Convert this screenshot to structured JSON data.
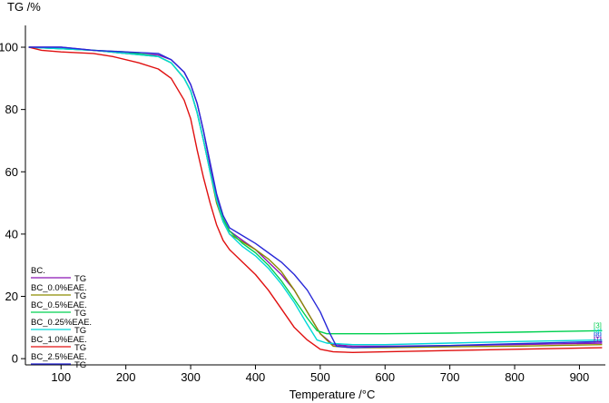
{
  "chart_data": {
    "type": "line",
    "ylabel": "TG /%",
    "xlabel": "Temperature /°C",
    "xlim": [
      45,
      940
    ],
    "ylim": [
      -2,
      107
    ],
    "x_ticks": [
      100,
      200,
      300,
      400,
      500,
      600,
      700,
      800,
      900
    ],
    "y_ticks": [
      0,
      20,
      40,
      60,
      80,
      100
    ],
    "legend_position": "bottom-left",
    "series": [
      {
        "name": "BC.",
        "color": "#8b14b4",
        "unit": "TG",
        "points": [
          [
            50,
            100
          ],
          [
            100,
            100
          ],
          [
            150,
            99
          ],
          [
            200,
            98
          ],
          [
            250,
            97.5
          ],
          [
            270,
            96
          ],
          [
            290,
            92
          ],
          [
            300,
            88
          ],
          [
            310,
            82
          ],
          [
            320,
            73
          ],
          [
            330,
            62
          ],
          [
            340,
            52
          ],
          [
            350,
            45
          ],
          [
            360,
            41
          ],
          [
            380,
            38
          ],
          [
            400,
            35
          ],
          [
            420,
            31
          ],
          [
            440,
            27
          ],
          [
            460,
            22
          ],
          [
            480,
            15
          ],
          [
            500,
            8
          ],
          [
            520,
            4.5
          ],
          [
            550,
            4
          ],
          [
            600,
            4
          ],
          [
            700,
            4.2
          ],
          [
            800,
            4.5
          ],
          [
            935,
            5
          ]
        ]
      },
      {
        "name": "BC_0.0%EAE.",
        "color": "#8c8c00",
        "unit": "TG",
        "points": [
          [
            50,
            100
          ],
          [
            100,
            99.5
          ],
          [
            150,
            99
          ],
          [
            200,
            98
          ],
          [
            250,
            97
          ],
          [
            270,
            95
          ],
          [
            290,
            90
          ],
          [
            300,
            86
          ],
          [
            310,
            79
          ],
          [
            320,
            70
          ],
          [
            330,
            60
          ],
          [
            340,
            50
          ],
          [
            350,
            44
          ],
          [
            360,
            40
          ],
          [
            380,
            37.5
          ],
          [
            400,
            35
          ],
          [
            420,
            32
          ],
          [
            440,
            28
          ],
          [
            460,
            22
          ],
          [
            480,
            15
          ],
          [
            500,
            8
          ],
          [
            520,
            4
          ],
          [
            550,
            3.5
          ],
          [
            600,
            3.5
          ],
          [
            700,
            3.8
          ],
          [
            800,
            4
          ],
          [
            935,
            4.5
          ]
        ]
      },
      {
        "name": "BC_0.5%EAE.",
        "color": "#00d050",
        "unit": "TG",
        "points": [
          [
            50,
            100
          ],
          [
            100,
            99.5
          ],
          [
            150,
            99
          ],
          [
            200,
            98.5
          ],
          [
            250,
            97
          ],
          [
            270,
            95
          ],
          [
            290,
            90
          ],
          [
            300,
            86
          ],
          [
            310,
            79
          ],
          [
            320,
            70
          ],
          [
            330,
            60
          ],
          [
            340,
            51
          ],
          [
            350,
            45
          ],
          [
            360,
            41
          ],
          [
            380,
            37
          ],
          [
            400,
            34
          ],
          [
            420,
            30
          ],
          [
            440,
            25
          ],
          [
            460,
            19
          ],
          [
            480,
            13
          ],
          [
            495,
            9
          ],
          [
            510,
            8
          ],
          [
            550,
            8
          ],
          [
            600,
            8
          ],
          [
            700,
            8.2
          ],
          [
            800,
            8.5
          ],
          [
            935,
            9
          ]
        ]
      },
      {
        "name": "BC_0.25%EAE.",
        "color": "#00d8d8",
        "unit": "TG",
        "points": [
          [
            50,
            100
          ],
          [
            100,
            99.5
          ],
          [
            150,
            99
          ],
          [
            200,
            98
          ],
          [
            250,
            97
          ],
          [
            270,
            95
          ],
          [
            290,
            90
          ],
          [
            300,
            86
          ],
          [
            310,
            79
          ],
          [
            320,
            70
          ],
          [
            330,
            60
          ],
          [
            340,
            51
          ],
          [
            350,
            44
          ],
          [
            360,
            40
          ],
          [
            380,
            36
          ],
          [
            400,
            33
          ],
          [
            420,
            29
          ],
          [
            440,
            24
          ],
          [
            460,
            18
          ],
          [
            480,
            11
          ],
          [
            495,
            6
          ],
          [
            510,
            5
          ],
          [
            550,
            4.5
          ],
          [
            600,
            4.5
          ],
          [
            700,
            5
          ],
          [
            800,
            5.5
          ],
          [
            935,
            6
          ]
        ]
      },
      {
        "name": "BC_1.0%EAE.",
        "color": "#e01010",
        "unit": "TG",
        "points": [
          [
            50,
            100
          ],
          [
            70,
            99
          ],
          [
            100,
            98.5
          ],
          [
            150,
            98
          ],
          [
            180,
            97
          ],
          [
            220,
            95
          ],
          [
            250,
            93
          ],
          [
            270,
            90
          ],
          [
            290,
            83
          ],
          [
            300,
            77
          ],
          [
            310,
            67
          ],
          [
            320,
            58
          ],
          [
            330,
            50
          ],
          [
            340,
            43
          ],
          [
            350,
            38
          ],
          [
            360,
            35
          ],
          [
            380,
            31
          ],
          [
            400,
            27
          ],
          [
            420,
            22
          ],
          [
            440,
            16
          ],
          [
            460,
            10
          ],
          [
            480,
            6
          ],
          [
            500,
            3
          ],
          [
            520,
            2.2
          ],
          [
            550,
            2
          ],
          [
            600,
            2.2
          ],
          [
            700,
            2.6
          ],
          [
            800,
            3
          ],
          [
            935,
            3.5
          ]
        ]
      },
      {
        "name": "BC_2.5%EAE.",
        "color": "#2828d8",
        "unit": "TG",
        "points": [
          [
            50,
            100
          ],
          [
            100,
            100
          ],
          [
            150,
            99
          ],
          [
            200,
            98.5
          ],
          [
            250,
            98
          ],
          [
            270,
            96
          ],
          [
            290,
            92
          ],
          [
            300,
            88
          ],
          [
            310,
            82
          ],
          [
            320,
            73
          ],
          [
            330,
            63
          ],
          [
            340,
            53
          ],
          [
            350,
            46
          ],
          [
            360,
            42
          ],
          [
            380,
            39.5
          ],
          [
            400,
            37
          ],
          [
            420,
            34
          ],
          [
            440,
            31
          ],
          [
            460,
            27
          ],
          [
            480,
            22
          ],
          [
            500,
            15
          ],
          [
            515,
            8
          ],
          [
            525,
            4
          ],
          [
            550,
            3.5
          ],
          [
            600,
            3.8
          ],
          [
            700,
            4.2
          ],
          [
            800,
            4.8
          ],
          [
            935,
            5.5
          ]
        ]
      }
    ],
    "end_markers": [
      {
        "label": "[3]",
        "color": "#00d050",
        "y": 10.7
      },
      {
        "label": "[4]",
        "color": "#00d8d8",
        "y": 8.7
      },
      {
        "label": "[6]",
        "color": "#2828d8",
        "y": 7.4
      },
      {
        "label": "[1]",
        "color": "#8b14b4",
        "y": 6.2
      }
    ]
  }
}
